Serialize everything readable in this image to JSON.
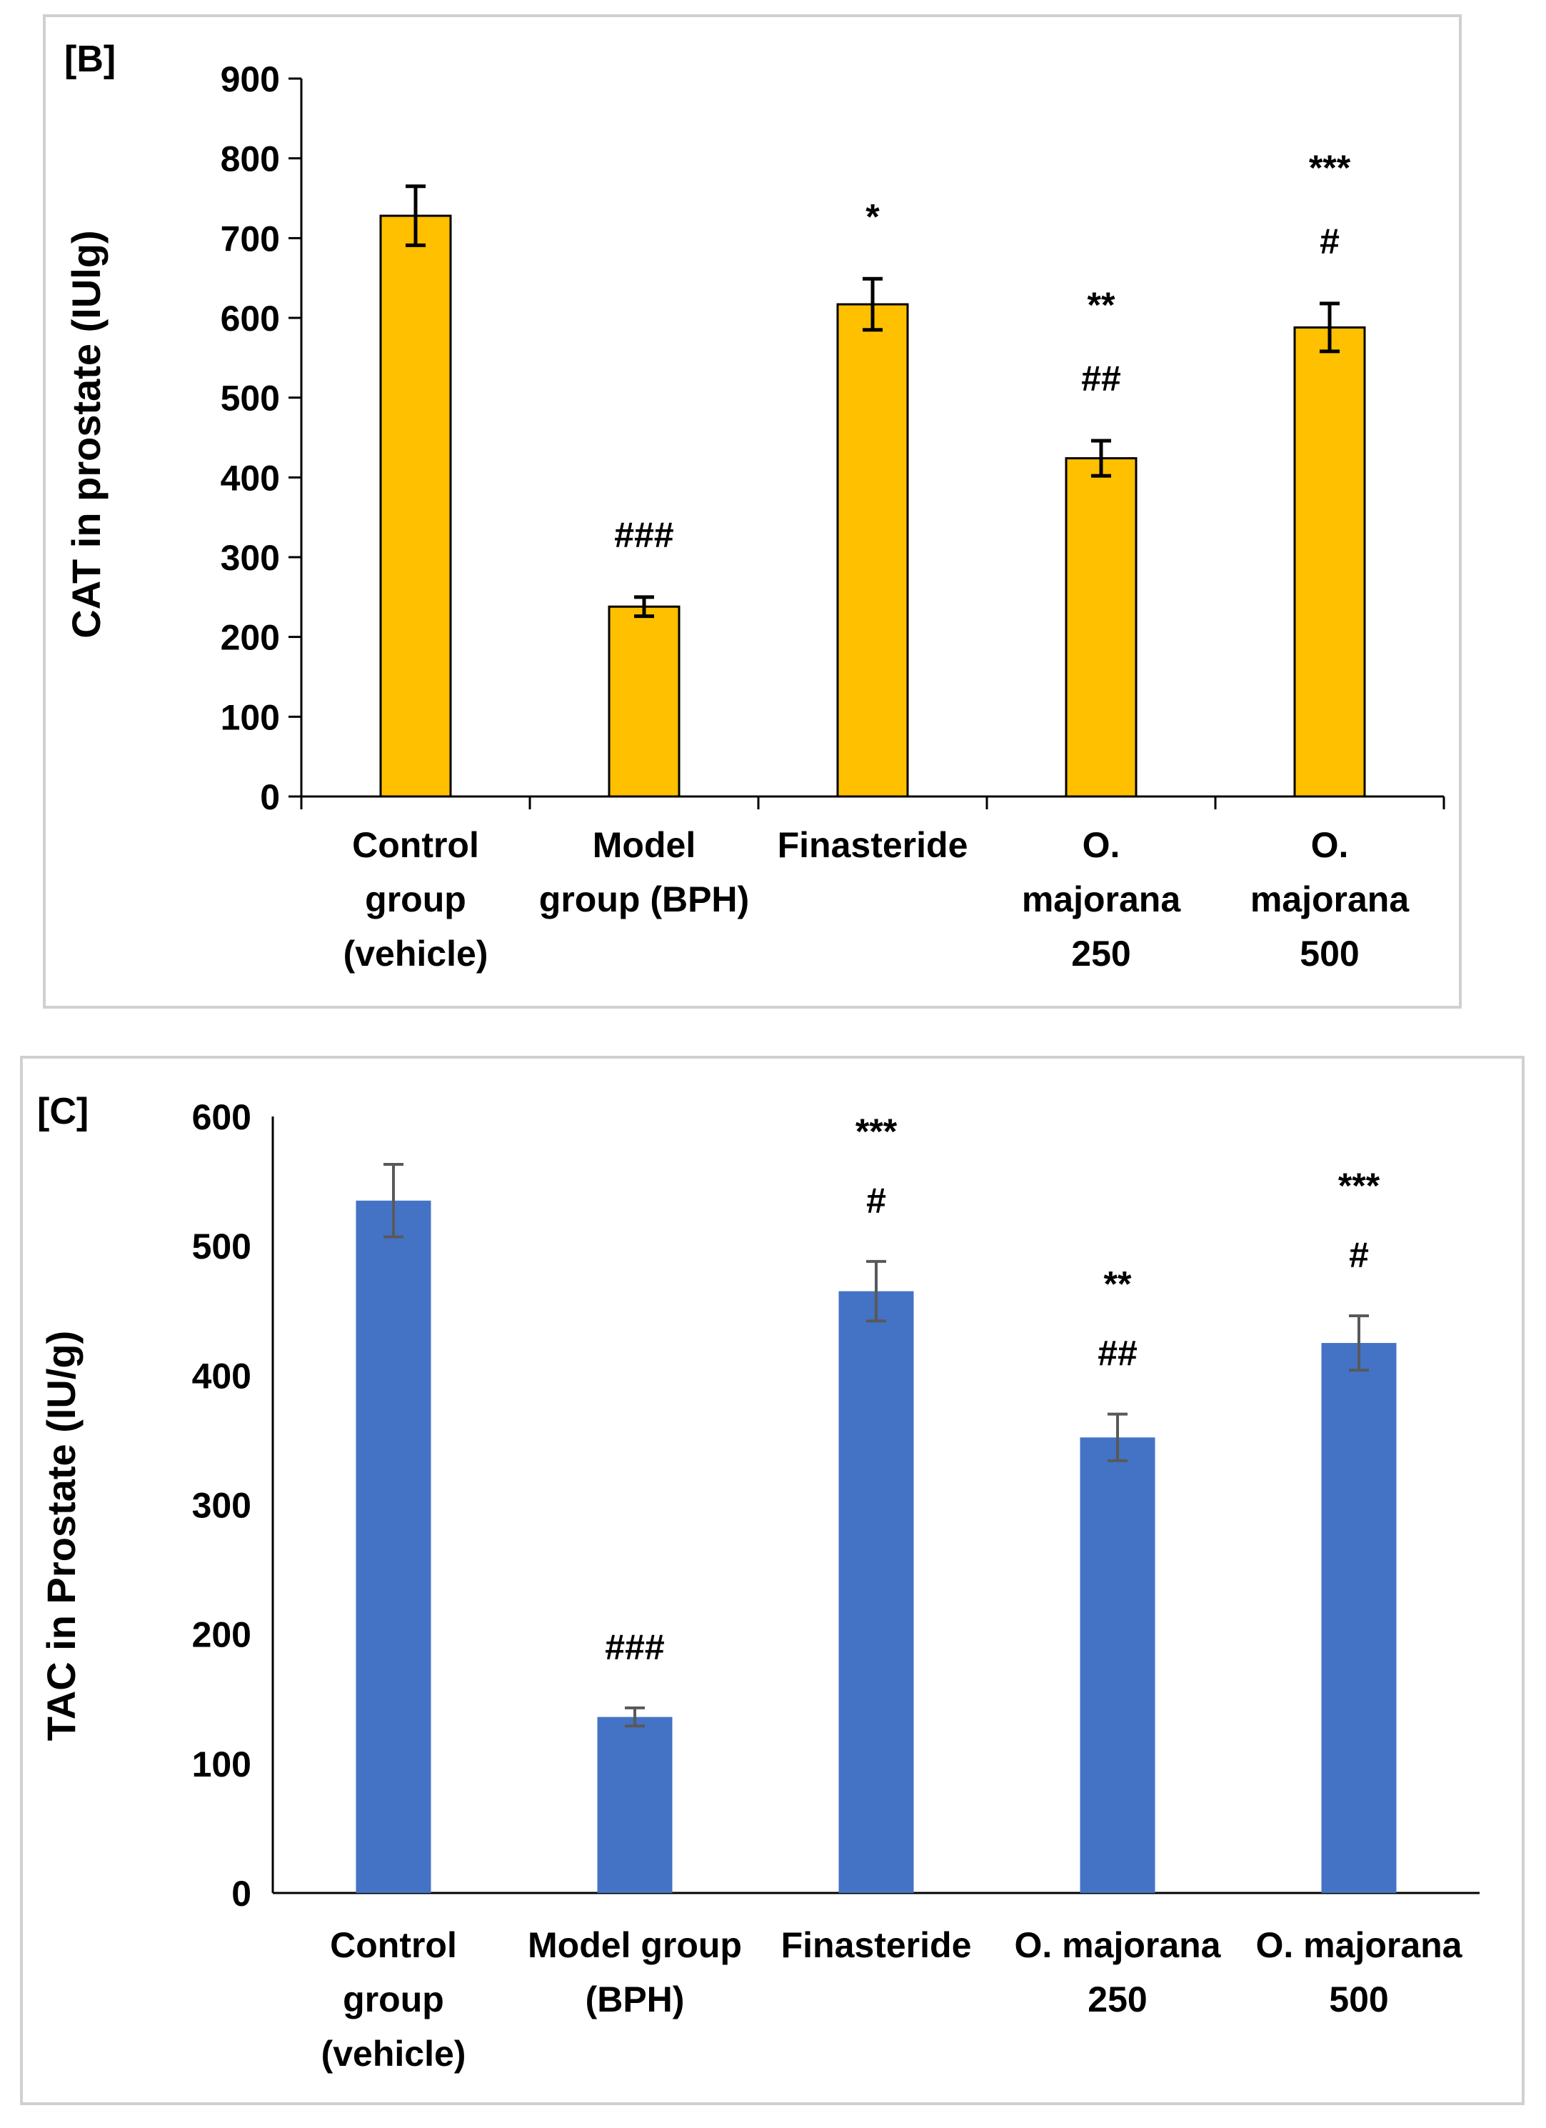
{
  "chart_data": [
    {
      "panel_label": "[B]",
      "type": "bar",
      "ylabel": "CAT in prostate (IUlg)",
      "ylim": [
        0,
        900
      ],
      "yticks": [
        0,
        100,
        200,
        300,
        400,
        500,
        600,
        700,
        800,
        900
      ],
      "categories": [
        [
          "Control",
          "group",
          "(vehicle)"
        ],
        [
          "Model",
          "group (BPH)"
        ],
        [
          "Finasteride"
        ],
        [
          "O.",
          "majorana",
          "250"
        ],
        [
          "O.",
          "majorana",
          "500"
        ]
      ],
      "values": [
        728,
        238,
        617,
        424,
        588
      ],
      "errors": [
        37,
        12,
        32,
        22,
        30
      ],
      "annotations": [
        [],
        [
          "###"
        ],
        [
          "*"
        ],
        [
          "**",
          "##"
        ],
        [
          "***",
          "#"
        ]
      ],
      "bar_color": "#FFC000",
      "bar_stroke": "#000000",
      "error_color": "#000000"
    },
    {
      "panel_label": "[C]",
      "type": "bar",
      "ylabel": "TAC in Prostate  (IU/g)",
      "ylim": [
        0,
        600
      ],
      "yticks": [
        0,
        100,
        200,
        300,
        400,
        500,
        600
      ],
      "categories": [
        [
          "Control",
          "group",
          "(vehicle)"
        ],
        [
          "Model group",
          "(BPH)"
        ],
        [
          "Finasteride"
        ],
        [
          "O. majorana",
          "250"
        ],
        [
          "O. majorana",
          "500"
        ]
      ],
      "values": [
        535,
        136,
        465,
        352,
        425
      ],
      "errors": [
        28,
        7,
        23,
        18,
        21
      ],
      "annotations": [
        [],
        [
          "###"
        ],
        [
          "***",
          "#"
        ],
        [
          "**",
          "##"
        ],
        [
          "***",
          "#"
        ]
      ],
      "bar_color": "#4472C4",
      "bar_stroke": "none",
      "error_color": "#595959"
    }
  ]
}
